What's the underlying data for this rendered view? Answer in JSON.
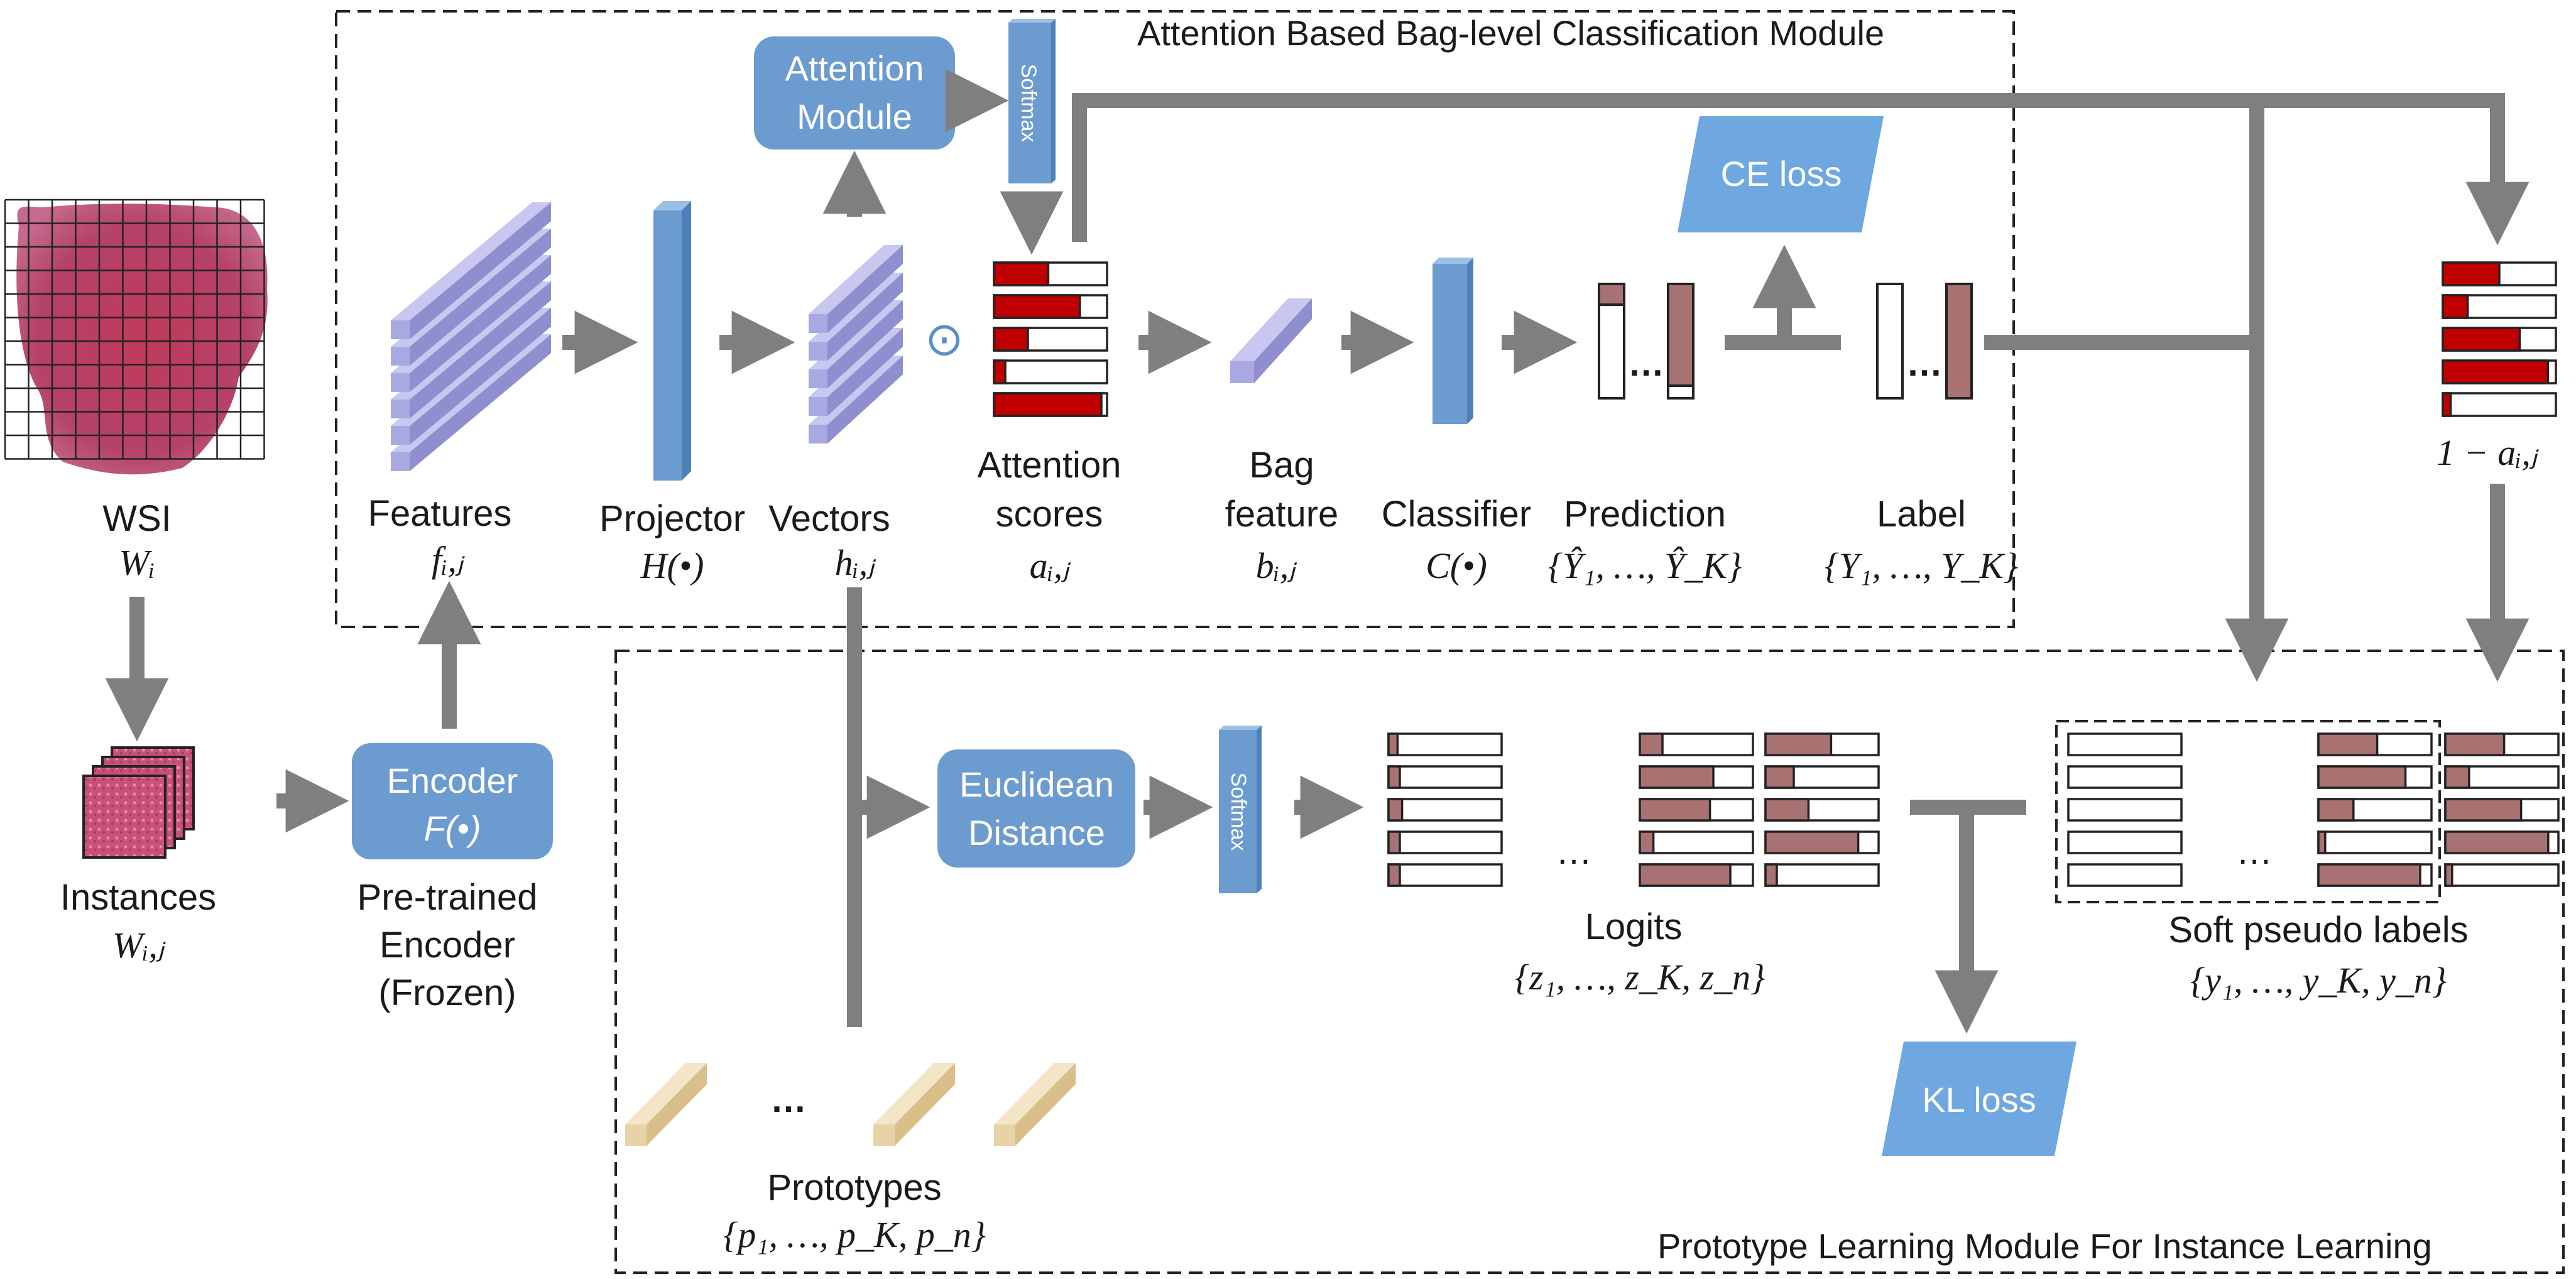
{
  "modules": {
    "top_title": "Attention Based Bag-level Classification Module",
    "bottom_title": "Prototype Learning Module For Instance Learning"
  },
  "inputs": {
    "wsi_label": "WSI",
    "wsi_math": "Wᵢ",
    "instances_label": "Instances",
    "instances_math": "Wᵢ,ⱼ"
  },
  "encoder": {
    "box_line1": "Encoder",
    "box_line2": "F(•)",
    "caption_line1": "Pre-trained",
    "caption_line2": "Encoder",
    "caption_line3": "(Frozen)"
  },
  "top_row": {
    "features_label": "Features",
    "features_math": "fᵢ,ⱼ",
    "projector_label": "Projector",
    "projector_math": "H(•)",
    "vectors_label": "Vectors",
    "vectors_math": "hᵢ,ⱼ",
    "attention_module_line1": "Attention",
    "attention_module_line2": "Module",
    "softmax_label": "Softmax",
    "odot_symbol": "⊙",
    "attention_scores_line1": "Attention",
    "attention_scores_line2": "scores",
    "attention_scores_math": "aᵢ,ⱼ",
    "bag_feature_line1": "Bag",
    "bag_feature_line2": "feature",
    "bag_feature_math": "bᵢ,ⱼ",
    "classifier_label": "Classifier",
    "classifier_math": "C(•)",
    "prediction_label": "Prediction",
    "prediction_math": "{Ŷ₁, …, Ŷ_K}",
    "label_label": "Label",
    "label_math": "{Y₁, …, Y_K}",
    "ce_loss": "CE loss",
    "one_minus_a": "1 − aᵢ,ⱼ",
    "ellipsis": "…"
  },
  "bottom_row": {
    "euclid_line1": "Euclidean",
    "euclid_line2": "Distance",
    "softmax_label": "Softmax",
    "logits_label": "Logits",
    "logits_math": "{z₁, …, z_K, z_n}",
    "soft_pseudo_label": "Soft pseudo labels",
    "soft_pseudo_math": "{y₁, …, y_K, y_n}",
    "kl_loss": "KL loss",
    "prototypes_label": "Prototypes",
    "prototypes_math": "{p₁, …, p_K, p_n}",
    "ellipsis": "…"
  },
  "attention_fills": [
    0.48,
    0.76,
    0.3,
    0.1,
    0.95
  ],
  "one_minus_fills": [
    0.5,
    0.22,
    0.68,
    0.93,
    0.07
  ],
  "logits_left_fills": [
    0.08,
    0.1,
    0.12,
    0.1,
    0.1
  ],
  "logits_mid_fills": [
    0.2,
    0.65,
    0.62,
    0.12,
    0.8
  ],
  "logits_right_fills": [
    0.58,
    0.25,
    0.38,
    0.82,
    0.1
  ],
  "pseudo_mid_fills": [
    0.52,
    0.77,
    0.31,
    0.06,
    0.9
  ],
  "pseudo_right_fills": [
    0.52,
    0.21,
    0.67,
    0.91,
    0.06
  ],
  "colors": {
    "arrow": "#7f7f7f",
    "blue_box": "#6c9bcf",
    "ce_kl_box": "#6fa8e0",
    "purple_layer": "#a9a9e2",
    "attention_red": "#c00000",
    "logit_brown": "#a87272",
    "prototype_tan": "#e8d3a8",
    "tissue": "#b53a5f"
  }
}
